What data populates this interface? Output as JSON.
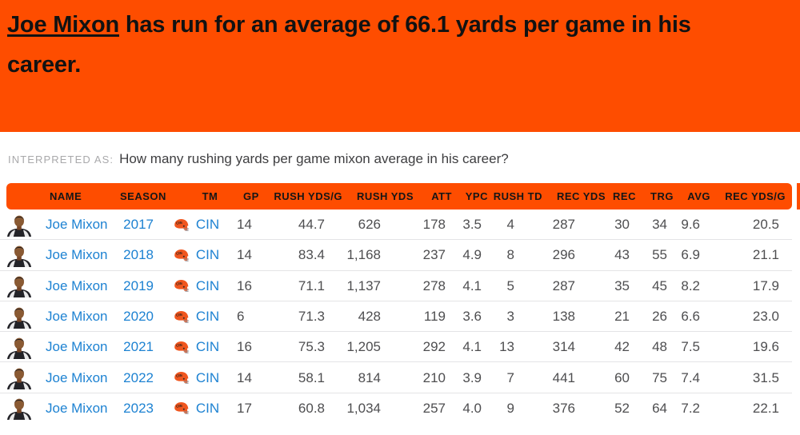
{
  "banner": {
    "player_link": "Joe Mixon",
    "line1_rest": " has run for an average of 66.1 yards per game in his",
    "line2": "career."
  },
  "interpreted": {
    "label": "INTERPRETED AS:",
    "question": "How many rushing yards per game mixon average in his career?"
  },
  "table": {
    "columns": [
      "NAME",
      "SEASON",
      "TM",
      "GP",
      "RUSH YDS/G",
      "RUSH YDS",
      "ATT",
      "YPC",
      "RUSH TD",
      "REC YDS",
      "REC",
      "TRG",
      "AVG",
      "REC YDS/G"
    ],
    "rows": [
      {
        "name": "Joe Mixon",
        "season": "2017",
        "team": "CIN",
        "gp": "14",
        "rush_ydsg": "44.7",
        "rush_yds": "626",
        "att": "178",
        "ypc": "3.5",
        "rush_td": "4",
        "rec_yds": "287",
        "rec": "30",
        "trg": "34",
        "avg": "9.6",
        "rec_ydsg": "20.5"
      },
      {
        "name": "Joe Mixon",
        "season": "2018",
        "team": "CIN",
        "gp": "14",
        "rush_ydsg": "83.4",
        "rush_yds": "1,168",
        "att": "237",
        "ypc": "4.9",
        "rush_td": "8",
        "rec_yds": "296",
        "rec": "43",
        "trg": "55",
        "avg": "6.9",
        "rec_ydsg": "21.1"
      },
      {
        "name": "Joe Mixon",
        "season": "2019",
        "team": "CIN",
        "gp": "16",
        "rush_ydsg": "71.1",
        "rush_yds": "1,137",
        "att": "278",
        "ypc": "4.1",
        "rush_td": "5",
        "rec_yds": "287",
        "rec": "35",
        "trg": "45",
        "avg": "8.2",
        "rec_ydsg": "17.9"
      },
      {
        "name": "Joe Mixon",
        "season": "2020",
        "team": "CIN",
        "gp": "6",
        "rush_ydsg": "71.3",
        "rush_yds": "428",
        "att": "119",
        "ypc": "3.6",
        "rush_td": "3",
        "rec_yds": "138",
        "rec": "21",
        "trg": "26",
        "avg": "6.6",
        "rec_ydsg": "23.0"
      },
      {
        "name": "Joe Mixon",
        "season": "2021",
        "team": "CIN",
        "gp": "16",
        "rush_ydsg": "75.3",
        "rush_yds": "1,205",
        "att": "292",
        "ypc": "4.1",
        "rush_td": "13",
        "rec_yds": "314",
        "rec": "42",
        "trg": "48",
        "avg": "7.5",
        "rec_ydsg": "19.6"
      },
      {
        "name": "Joe Mixon",
        "season": "2022",
        "team": "CIN",
        "gp": "14",
        "rush_ydsg": "58.1",
        "rush_yds": "814",
        "att": "210",
        "ypc": "3.9",
        "rush_td": "7",
        "rec_yds": "441",
        "rec": "60",
        "trg": "75",
        "avg": "7.4",
        "rec_ydsg": "31.5"
      },
      {
        "name": "Joe Mixon",
        "season": "2023",
        "team": "CIN",
        "gp": "17",
        "rush_ydsg": "60.8",
        "rush_yds": "1,034",
        "att": "257",
        "ypc": "4.0",
        "rush_td": "9",
        "rec_yds": "376",
        "rec": "52",
        "trg": "64",
        "avg": "7.2",
        "rec_ydsg": "22.1"
      }
    ]
  },
  "colors": {
    "accent_orange": "#fe4d00",
    "link_blue": "#1d82d2",
    "headline_text": "#121212",
    "stat_text": "#4e4e50",
    "divider": "#e4e4e6",
    "muted_label": "#a9a9ab",
    "question_text": "#3e3e40",
    "helmet_orange": "#f0561e"
  }
}
